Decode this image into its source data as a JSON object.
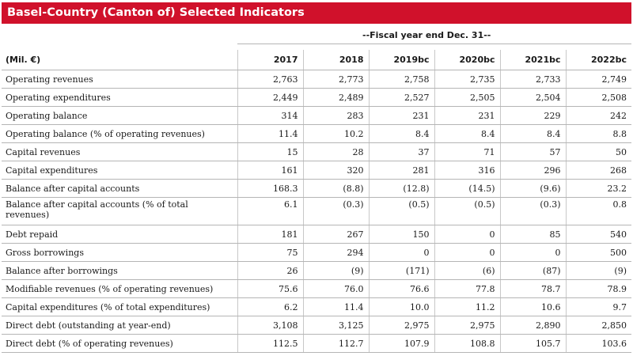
{
  "title": "Basel-Country (Canton of) Selected Indicators",
  "fiscal_note": "--Fiscal year end Dec. 31--",
  "unit_label": "(Mil. €)",
  "years": [
    "2017",
    "2018",
    "2019bc",
    "2020bc",
    "2021bc",
    "2022bc"
  ],
  "rows": [
    {
      "label": "Operating revenues",
      "values": [
        "2,763",
        "2,773",
        "2,758",
        "2,735",
        "2,733",
        "2,749"
      ]
    },
    {
      "label": "Operating expenditures",
      "values": [
        "2,449",
        "2,489",
        "2,527",
        "2,505",
        "2,504",
        "2,508"
      ]
    },
    {
      "label": "Operating balance",
      "values": [
        "314",
        "283",
        "231",
        "231",
        "229",
        "242"
      ]
    },
    {
      "label": "Operating balance (% of operating revenues)",
      "values": [
        "11.4",
        "10.2",
        "8.4",
        "8.4",
        "8.4",
        "8.8"
      ]
    },
    {
      "label": "Capital revenues",
      "values": [
        "15",
        "28",
        "37",
        "71",
        "57",
        "50"
      ]
    },
    {
      "label": "Capital expenditures",
      "values": [
        "161",
        "320",
        "281",
        "316",
        "296",
        "268"
      ]
    },
    {
      "label": "Balance after capital accounts",
      "values": [
        "168.3",
        "(8.8)",
        "(12.8)",
        "(14.5)",
        "(9.6)",
        "23.2"
      ]
    },
    {
      "label": "Balance after capital accounts (% of total revenues)",
      "values": [
        "6.1",
        "(0.3)",
        "(0.5)",
        "(0.5)",
        "(0.3)",
        "0.8"
      ]
    },
    {
      "label": "Debt repaid",
      "values": [
        "181",
        "267",
        "150",
        "0",
        "85",
        "540"
      ]
    },
    {
      "label": "Gross borrowings",
      "values": [
        "75",
        "294",
        "0",
        "0",
        "0",
        "500"
      ]
    },
    {
      "label": "Balance after borrowings",
      "values": [
        "26",
        "(9)",
        "(171)",
        "(6)",
        "(87)",
        "(9)"
      ]
    },
    {
      "label": "Modifiable revenues (% of operating revenues)",
      "values": [
        "75.6",
        "76.0",
        "76.6",
        "77.8",
        "78.7",
        "78.9"
      ]
    },
    {
      "label": "Capital expenditures (% of total expenditures)",
      "values": [
        "6.2",
        "11.4",
        "10.0",
        "11.2",
        "10.6",
        "9.7"
      ]
    },
    {
      "label": "Direct debt (outstanding at year-end)",
      "values": [
        "3,108",
        "3,125",
        "2,975",
        "2,975",
        "2,890",
        "2,850"
      ]
    },
    {
      "label": "Direct debt (% of operating revenues)",
      "values": [
        "112.5",
        "112.7",
        "107.9",
        "108.8",
        "105.7",
        "103.6"
      ]
    }
  ]
}
